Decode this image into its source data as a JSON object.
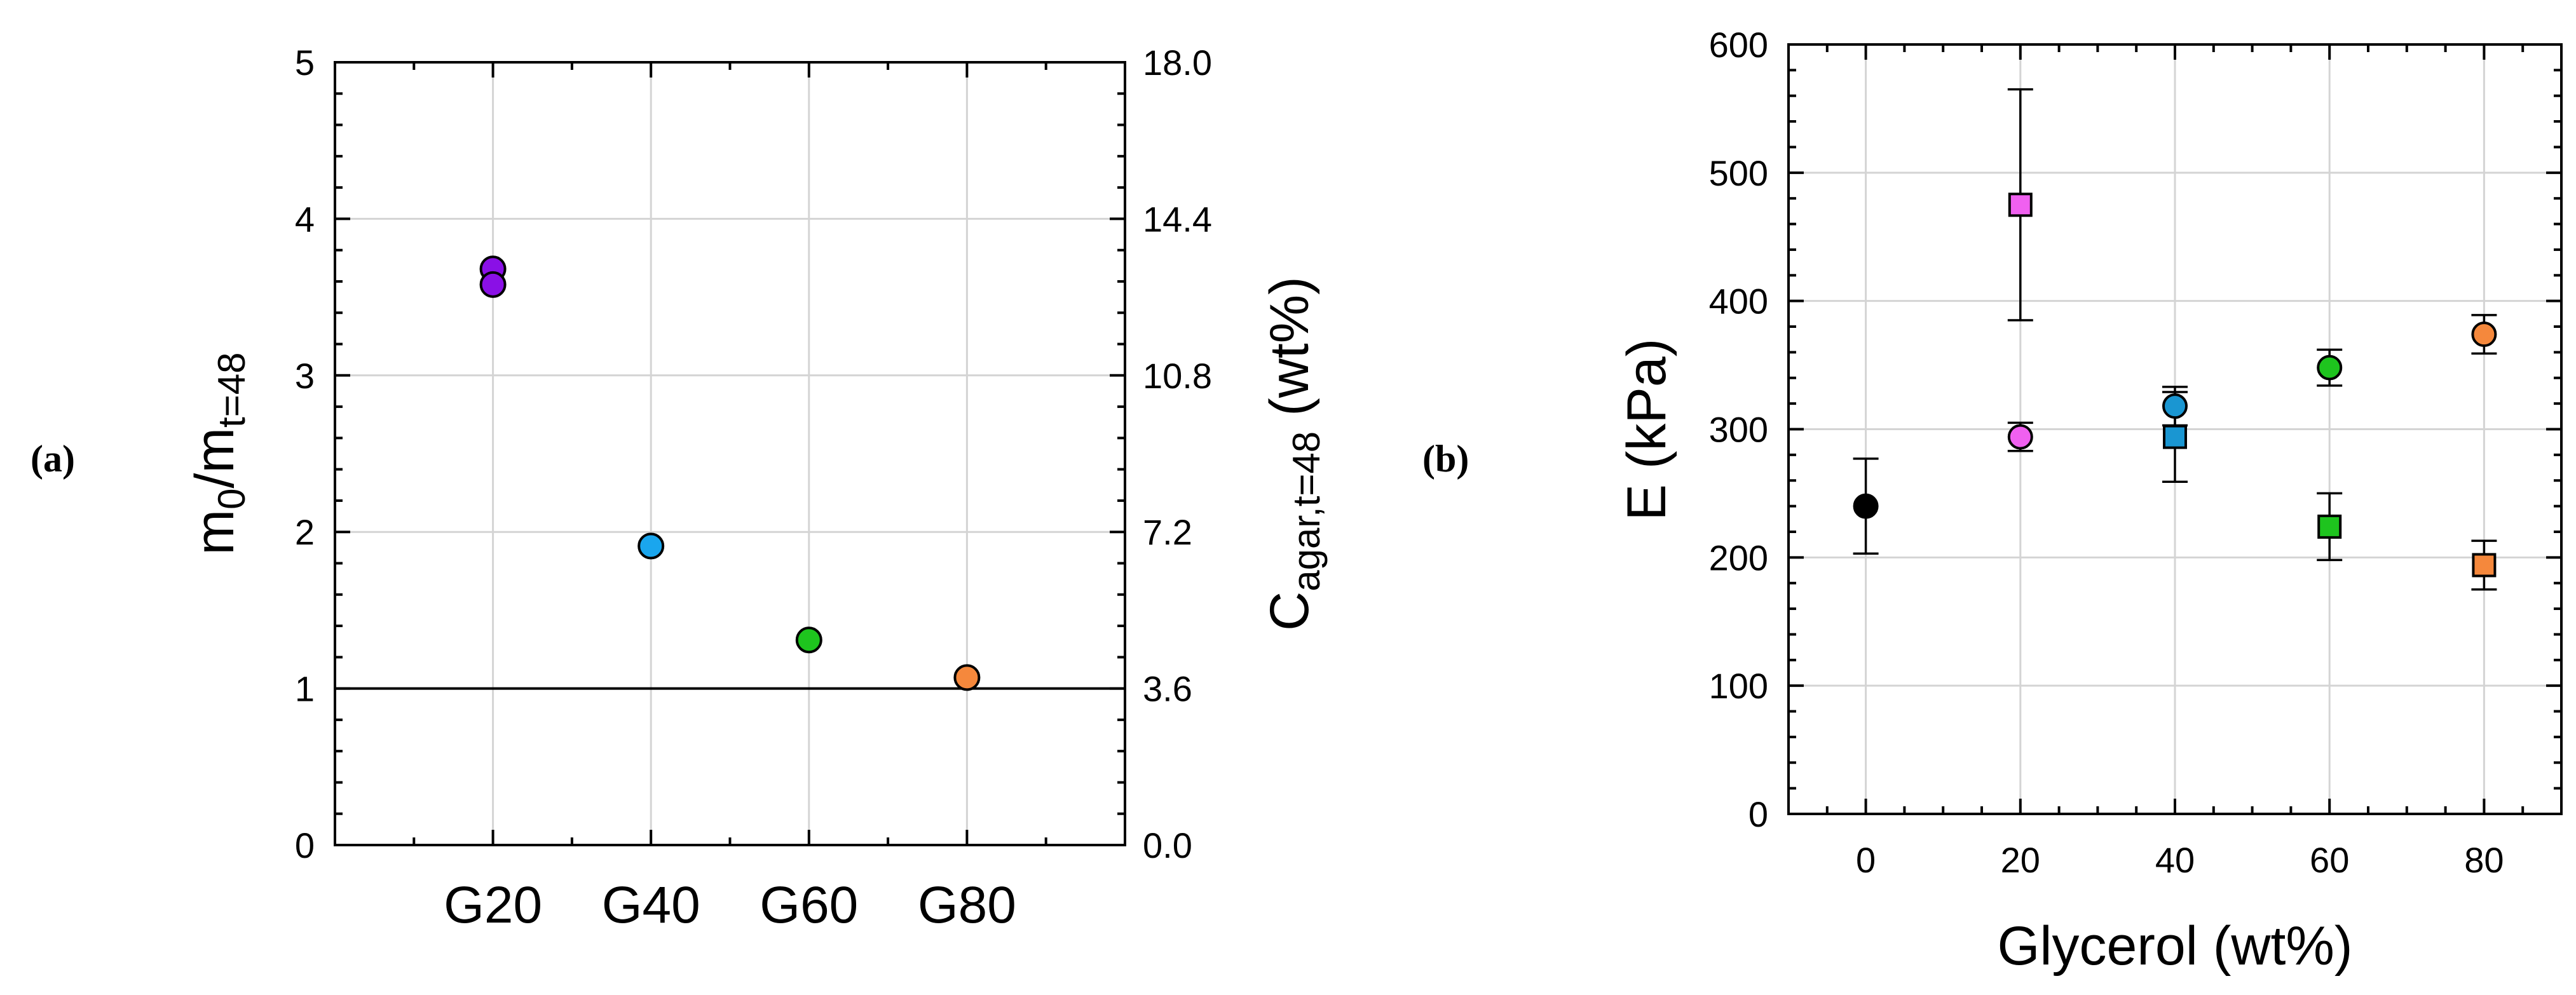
{
  "panels": {
    "a": {
      "label": "(a)"
    },
    "b": {
      "label": "(b)"
    }
  },
  "chart_data": [
    {
      "id": "a",
      "type": "scatter",
      "title": "",
      "categories": [
        "G20",
        "G40",
        "G60",
        "G80"
      ],
      "ylabel": {
        "main": "m",
        "sub1": "0",
        "mid": "/m",
        "sub2": "t=48"
      },
      "ylim": [
        0,
        5
      ],
      "yticks": [
        0,
        1,
        2,
        3,
        4,
        5
      ],
      "y2label": {
        "main": "C",
        "sub": "agar,t=48",
        "tail": " (wt%)"
      },
      "y2lim": [
        0.0,
        18.0
      ],
      "y2ticks": [
        "0.0",
        "3.6",
        "7.2",
        "10.8",
        "14.4",
        "18.0"
      ],
      "reference_line": {
        "y": 1,
        "color": "#000000"
      },
      "grid": true,
      "points": [
        {
          "category": "G20",
          "y": 3.68,
          "color": "#8a10e6"
        },
        {
          "category": "G20",
          "y": 3.58,
          "color": "#8a10e6"
        },
        {
          "category": "G40",
          "y": 1.91,
          "color": "#1aa6ee"
        },
        {
          "category": "G60",
          "y": 1.31,
          "color": "#1ec41e"
        },
        {
          "category": "G80",
          "y": 1.07,
          "color": "#f5883c"
        }
      ]
    },
    {
      "id": "b",
      "type": "scatter",
      "title": "",
      "xlabel": "Glycerol (wt%)",
      "ylabel": "E (kPa)",
      "xlim": [
        -10,
        90
      ],
      "ylim": [
        0,
        600
      ],
      "xticks": [
        0,
        20,
        40,
        60,
        80
      ],
      "yticks": [
        0,
        100,
        200,
        300,
        400,
        500,
        600
      ],
      "grid": true,
      "circles": [
        {
          "x": 0,
          "y": 240,
          "err": 37,
          "color": "#000000"
        },
        {
          "x": 20,
          "y": 294,
          "err": 11,
          "color": "#f060f0"
        },
        {
          "x": 40,
          "y": 318,
          "err": 15,
          "color": "#1a96d2"
        },
        {
          "x": 60,
          "y": 348,
          "err": 14,
          "color": "#1ec41e"
        },
        {
          "x": 80,
          "y": 374,
          "err": 15,
          "color": "#f5883c"
        }
      ],
      "squares": [
        {
          "x": 20,
          "y": 475,
          "err": 90,
          "color": "#f060f0"
        },
        {
          "x": 40,
          "y": 294,
          "err": 35,
          "color": "#1a96d2"
        },
        {
          "x": 60,
          "y": 224,
          "err": 26,
          "color": "#1ec41e"
        },
        {
          "x": 80,
          "y": 194,
          "err": 19,
          "color": "#f5883c"
        }
      ]
    }
  ]
}
